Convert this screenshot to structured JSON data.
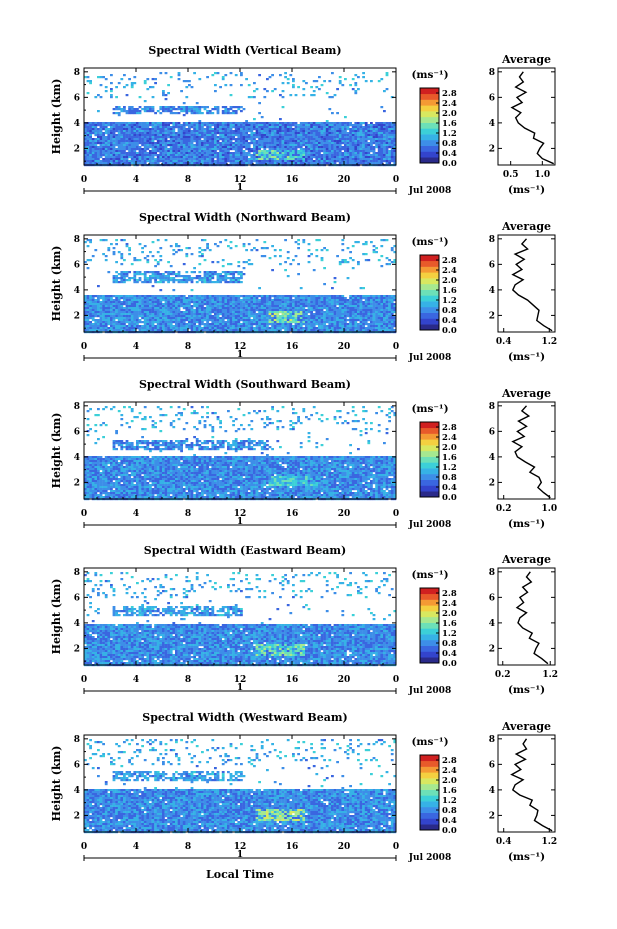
{
  "colorbar_colors": [
    "#2a2a8a",
    "#3344cc",
    "#3a66e0",
    "#3d8ee8",
    "#36b2e6",
    "#3cd0d8",
    "#6ce0b8",
    "#a6e890",
    "#d8e860",
    "#f4d040",
    "#f49a34",
    "#e85a2a",
    "#d02020"
  ],
  "panels": [
    {
      "title": "Spectral Width (Vertical Beam)",
      "ylabel": "Height (km)",
      "unit_label": "(ms⁻¹)",
      "date_label": "Jul 2008",
      "day_marker": "1",
      "colorbar_ticks": [
        "2.8",
        "2.4",
        "2.0",
        "1.6",
        "1.2",
        "0.8",
        "0.4",
        "0.0"
      ],
      "avg_title": "Average",
      "avg_xlabel": "(ms⁻¹)",
      "avg_xticks": [
        "0.5",
        "1.0"
      ]
    },
    {
      "title": "Spectral Width (Northward Beam)",
      "ylabel": "Height (km)",
      "unit_label": "(ms⁻¹)",
      "date_label": "Jul 2008",
      "day_marker": "1",
      "colorbar_ticks": [
        "2.8",
        "2.4",
        "2.0",
        "1.6",
        "1.2",
        "0.8",
        "0.4",
        "0.0"
      ],
      "avg_title": "Average",
      "avg_xlabel": "(ms⁻¹)",
      "avg_xticks": [
        "0.4",
        "1.2"
      ]
    },
    {
      "title": "Spectral Width (Southward Beam)",
      "ylabel": "Height (km)",
      "unit_label": "(ms⁻¹)",
      "date_label": "Jul 2008",
      "day_marker": "1",
      "colorbar_ticks": [
        "2.8",
        "2.4",
        "2.0",
        "1.6",
        "1.2",
        "0.8",
        "0.4",
        "0.0"
      ],
      "avg_title": "Average",
      "avg_xlabel": "(ms⁻¹)",
      "avg_xticks": [
        "0.2",
        "1.0"
      ]
    },
    {
      "title": "Spectral Width (Eastward Beam)",
      "ylabel": "Height (km)",
      "unit_label": "(ms⁻¹)",
      "date_label": "Jul 2008",
      "day_marker": "1",
      "colorbar_ticks": [
        "2.8",
        "2.4",
        "2.0",
        "1.6",
        "1.2",
        "0.8",
        "0.4",
        "0.0"
      ],
      "avg_title": "Average",
      "avg_xlabel": "(ms⁻¹)",
      "avg_xticks": [
        "0.2",
        "1.2"
      ]
    },
    {
      "title": "Spectral Width (Westward Beam)",
      "ylabel": "Height (km)",
      "unit_label": "(ms⁻¹)",
      "date_label": "Jul 2008",
      "day_marker": "1",
      "colorbar_ticks": [
        "2.8",
        "2.4",
        "2.0",
        "1.6",
        "1.2",
        "0.8",
        "0.4",
        "0.0"
      ],
      "avg_title": "Average",
      "avg_xlabel": "(ms⁻¹)",
      "avg_xticks": [
        "0.4",
        "1.2"
      ]
    }
  ],
  "common_xlabel": "Local Time",
  "chart_data": [
    {
      "type": "heatmap",
      "title": "Spectral Width (Vertical Beam)",
      "xlabel": "",
      "ylabel": "Height (km)",
      "x_ticks": [
        "0",
        "4",
        "8",
        "12",
        "16",
        "20",
        "0"
      ],
      "y_ticks": [
        "2",
        "4",
        "6",
        "8"
      ],
      "xlim": [
        0,
        24
      ],
      "ylim": [
        0.7,
        8.3
      ],
      "colorbar": {
        "label": "(ms⁻¹)",
        "range": [
          0.0,
          3.0
        ],
        "ticks": [
          "2.8",
          "2.4",
          "2.0",
          "1.6",
          "1.2",
          "0.8",
          "0.4",
          "0.0"
        ]
      },
      "bands": [
        {
          "height_range_km": [
            0.7,
            4.1
          ],
          "typical_width_ms": 0.7,
          "coverage": "continuous"
        },
        {
          "height_range_km": [
            1.2,
            2.0
          ],
          "typical_width_ms": 1.4,
          "x_range": [
            13,
            17
          ]
        },
        {
          "height_range_km": [
            4.8,
            5.4
          ],
          "typical_width_ms": 0.8,
          "x_range": [
            2,
            12
          ]
        },
        {
          "height_range_km": [
            6.0,
            8.0
          ],
          "typical_width_ms": 1.0,
          "coverage": "sparse"
        }
      ]
    },
    {
      "type": "line",
      "title": "Average",
      "xlabel": "(ms⁻¹)",
      "ylabel": "",
      "x_ticks": [
        "0.5",
        "1.0"
      ],
      "y_ticks": [
        "2",
        "4",
        "6",
        "8"
      ],
      "xlim": [
        0.3,
        1.2
      ],
      "ylim": [
        0.7,
        8.3
      ],
      "series": [
        {
          "height_km": [
            0.8,
            1.2,
            1.6,
            2.0,
            2.4,
            2.8,
            3.2,
            3.6,
            4.0,
            4.4,
            4.8,
            5.2,
            5.6,
            6.0,
            6.4,
            6.8,
            7.2,
            7.6,
            8.0
          ],
          "width": [
            1.18,
            1.0,
            0.92,
            0.96,
            1.02,
            0.86,
            0.88,
            0.72,
            0.62,
            0.58,
            0.66,
            0.52,
            0.68,
            0.6,
            0.74,
            0.58,
            0.7,
            0.64,
            0.7
          ]
        }
      ]
    },
    {
      "type": "heatmap",
      "title": "Spectral Width (Northward Beam)",
      "xlabel": "",
      "ylabel": "Height (km)",
      "x_ticks": [
        "0",
        "4",
        "8",
        "12",
        "16",
        "20",
        "0"
      ],
      "y_ticks": [
        "2",
        "4",
        "6",
        "8"
      ],
      "xlim": [
        0,
        24
      ],
      "ylim": [
        0.7,
        8.3
      ],
      "colorbar": {
        "label": "(ms⁻¹)",
        "range": [
          0.0,
          3.0
        ],
        "ticks": [
          "2.8",
          "2.4",
          "2.0",
          "1.6",
          "1.2",
          "0.8",
          "0.4",
          "0.0"
        ]
      },
      "bands": [
        {
          "height_range_km": [
            0.7,
            3.6
          ],
          "typical_width_ms": 0.8,
          "coverage": "continuous"
        },
        {
          "height_range_km": [
            1.5,
            2.4
          ],
          "typical_width_ms": 1.6,
          "x_range": [
            14,
            17
          ]
        },
        {
          "height_range_km": [
            4.6,
            5.6
          ],
          "typical_width_ms": 0.9,
          "x_range": [
            2,
            12
          ]
        },
        {
          "height_range_km": [
            6.0,
            8.0
          ],
          "typical_width_ms": 1.0,
          "coverage": "sparse"
        }
      ]
    },
    {
      "type": "line",
      "title": "Average",
      "xlabel": "(ms⁻¹)",
      "ylabel": "",
      "x_ticks": [
        "0.4",
        "1.2"
      ],
      "y_ticks": [
        "2",
        "4",
        "6",
        "8"
      ],
      "xlim": [
        0.3,
        1.3
      ],
      "ylim": [
        0.7,
        8.3
      ],
      "series": [
        {
          "height_km": [
            0.8,
            1.2,
            1.6,
            2.0,
            2.4,
            2.8,
            3.2,
            3.6,
            4.0,
            4.4,
            4.8,
            5.2,
            5.6,
            6.0,
            6.4,
            6.8,
            7.2,
            7.6,
            8.0
          ],
          "width": [
            1.25,
            1.1,
            0.98,
            1.0,
            1.02,
            0.92,
            0.82,
            0.66,
            0.56,
            0.6,
            0.74,
            0.56,
            0.72,
            0.62,
            0.76,
            0.6,
            0.82,
            0.72,
            0.8
          ]
        }
      ]
    },
    {
      "type": "heatmap",
      "title": "Spectral Width (Southward Beam)",
      "xlabel": "",
      "ylabel": "Height (km)",
      "x_ticks": [
        "0",
        "4",
        "8",
        "12",
        "16",
        "20",
        "0"
      ],
      "y_ticks": [
        "2",
        "4",
        "6",
        "8"
      ],
      "xlim": [
        0,
        24
      ],
      "ylim": [
        0.7,
        8.3
      ],
      "colorbar": {
        "label": "(ms⁻¹)",
        "range": [
          0.0,
          3.0
        ],
        "ticks": [
          "2.8",
          "2.4",
          "2.0",
          "1.6",
          "1.2",
          "0.8",
          "0.4",
          "0.0"
        ]
      },
      "bands": [
        {
          "height_range_km": [
            0.7,
            4.1
          ],
          "typical_width_ms": 0.8,
          "coverage": "continuous"
        },
        {
          "height_range_km": [
            1.8,
            2.6
          ],
          "typical_width_ms": 1.2,
          "x_range": [
            14,
            18
          ]
        },
        {
          "height_range_km": [
            4.6,
            5.4
          ],
          "typical_width_ms": 0.8,
          "x_range": [
            2,
            14
          ]
        },
        {
          "height_range_km": [
            6.0,
            8.0
          ],
          "typical_width_ms": 1.0,
          "coverage": "sparse"
        }
      ]
    },
    {
      "type": "line",
      "title": "Average",
      "xlabel": "(ms⁻¹)",
      "ylabel": "",
      "x_ticks": [
        "0.2",
        "1.0"
      ],
      "y_ticks": [
        "2",
        "4",
        "6",
        "8"
      ],
      "xlim": [
        0.1,
        1.1
      ],
      "ylim": [
        0.7,
        8.3
      ],
      "series": [
        {
          "height_km": [
            0.8,
            1.2,
            1.6,
            2.0,
            2.4,
            2.8,
            3.2,
            3.6,
            4.0,
            4.4,
            4.8,
            5.2,
            5.6,
            6.0,
            6.4,
            6.8,
            7.2,
            7.6,
            8.0
          ],
          "width": [
            1.02,
            0.9,
            0.8,
            0.86,
            0.82,
            0.66,
            0.74,
            0.58,
            0.44,
            0.4,
            0.52,
            0.36,
            0.56,
            0.44,
            0.6,
            0.46,
            0.64,
            0.52,
            0.6
          ]
        }
      ]
    },
    {
      "type": "heatmap",
      "title": "Spectral Width (Eastward Beam)",
      "xlabel": "",
      "ylabel": "Height (km)",
      "x_ticks": [
        "0",
        "4",
        "8",
        "12",
        "16",
        "20",
        "0"
      ],
      "y_ticks": [
        "2",
        "4",
        "6",
        "8"
      ],
      "xlim": [
        0,
        24
      ],
      "ylim": [
        0.7,
        8.3
      ],
      "colorbar": {
        "label": "(ms⁻¹)",
        "range": [
          0.0,
          3.0
        ],
        "ticks": [
          "2.8",
          "2.4",
          "2.0",
          "1.6",
          "1.2",
          "0.8",
          "0.4",
          "0.0"
        ]
      },
      "bands": [
        {
          "height_range_km": [
            0.7,
            4.0
          ],
          "typical_width_ms": 0.8,
          "coverage": "continuous"
        },
        {
          "height_range_km": [
            1.5,
            2.5
          ],
          "typical_width_ms": 1.5,
          "x_range": [
            13,
            17
          ]
        },
        {
          "height_range_km": [
            4.6,
            5.4
          ],
          "typical_width_ms": 0.9,
          "x_range": [
            2,
            12
          ]
        },
        {
          "height_range_km": [
            6.0,
            8.0
          ],
          "typical_width_ms": 1.0,
          "coverage": "sparse"
        }
      ]
    },
    {
      "type": "line",
      "title": "Average",
      "xlabel": "(ms⁻¹)",
      "ylabel": "",
      "x_ticks": [
        "0.2",
        "1.2"
      ],
      "y_ticks": [
        "2",
        "4",
        "6",
        "8"
      ],
      "xlim": [
        0.1,
        1.3
      ],
      "ylim": [
        0.7,
        8.3
      ],
      "series": [
        {
          "height_km": [
            0.8,
            1.2,
            1.6,
            2.0,
            2.4,
            2.8,
            3.2,
            3.6,
            4.0,
            4.4,
            4.8,
            5.2,
            5.6,
            6.0,
            6.4,
            6.8,
            7.2,
            7.6,
            8.0
          ],
          "width": [
            1.15,
            1.02,
            0.86,
            0.9,
            0.96,
            0.76,
            0.82,
            0.62,
            0.52,
            0.56,
            0.7,
            0.5,
            0.64,
            0.56,
            0.72,
            0.62,
            0.8,
            0.7,
            0.78
          ]
        }
      ]
    },
    {
      "type": "heatmap",
      "title": "Spectral Width (Westward Beam)",
      "xlabel": "Local Time",
      "ylabel": "Height (km)",
      "x_ticks": [
        "0",
        "4",
        "8",
        "12",
        "16",
        "20",
        "0"
      ],
      "y_ticks": [
        "2",
        "4",
        "6",
        "8"
      ],
      "xlim": [
        0,
        24
      ],
      "ylim": [
        0.7,
        8.3
      ],
      "colorbar": {
        "label": "(ms⁻¹)",
        "range": [
          0.0,
          3.0
        ],
        "ticks": [
          "2.8",
          "2.4",
          "2.0",
          "1.6",
          "1.2",
          "0.8",
          "0.4",
          "0.0"
        ]
      },
      "bands": [
        {
          "height_range_km": [
            0.7,
            4.1
          ],
          "typical_width_ms": 0.8,
          "coverage": "continuous"
        },
        {
          "height_range_km": [
            1.6,
            2.6
          ],
          "typical_width_ms": 1.7,
          "x_range": [
            13,
            17
          ]
        },
        {
          "height_range_km": [
            4.8,
            5.6
          ],
          "typical_width_ms": 0.9,
          "x_range": [
            2,
            12
          ]
        },
        {
          "height_range_km": [
            6.0,
            8.0
          ],
          "typical_width_ms": 1.0,
          "coverage": "sparse"
        }
      ]
    },
    {
      "type": "line",
      "title": "Average",
      "xlabel": "(ms⁻¹)",
      "ylabel": "",
      "x_ticks": [
        "0.4",
        "1.2"
      ],
      "y_ticks": [
        "2",
        "4",
        "6",
        "8"
      ],
      "xlim": [
        0.3,
        1.3
      ],
      "ylim": [
        0.7,
        8.3
      ],
      "series": [
        {
          "height_km": [
            0.8,
            1.2,
            1.6,
            2.0,
            2.4,
            2.8,
            3.2,
            3.6,
            4.0,
            4.4,
            4.8,
            5.2,
            5.6,
            6.0,
            6.4,
            6.8,
            7.2,
            7.6,
            8.0
          ],
          "width": [
            1.25,
            1.08,
            0.94,
            0.98,
            1.0,
            0.86,
            0.9,
            0.68,
            0.56,
            0.6,
            0.74,
            0.54,
            0.7,
            0.6,
            0.78,
            0.62,
            0.8,
            0.74,
            0.8
          ]
        }
      ]
    }
  ]
}
